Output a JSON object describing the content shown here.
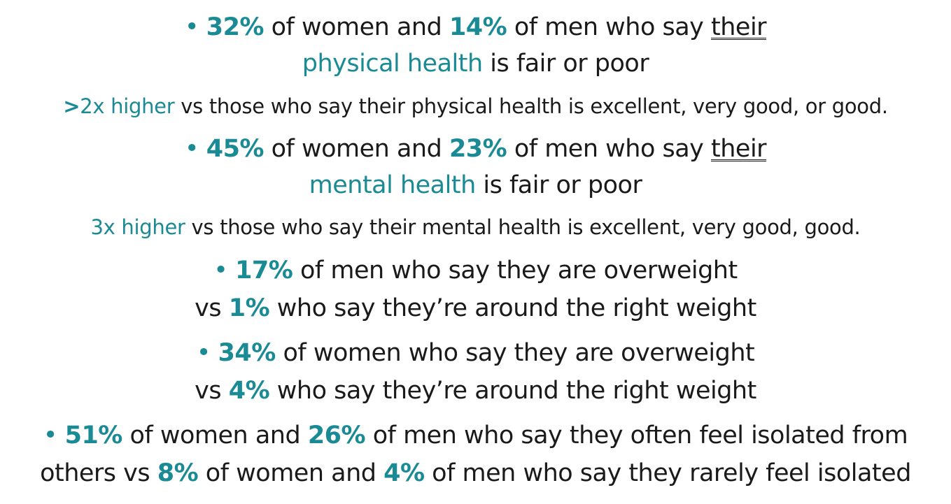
{
  "colors": {
    "accent": "#1a8a94",
    "text": "#1a1a1a"
  },
  "items": [
    {
      "line1": {
        "bullet": "•",
        "pct_a": "32%",
        "t1": " of women and ",
        "pct_b": "14%",
        "t2": " of men who say ",
        "ul": "their"
      },
      "line2": {
        "topic": "physical health",
        "rest": " is fair or poor"
      },
      "sub": {
        "prefix": ">",
        "lead": "2x higher",
        "rest": " vs those who say their physical health is excellent, very good, or good."
      }
    },
    {
      "line1": {
        "bullet": "•",
        "pct_a": "45%",
        "t1": " of women and ",
        "pct_b": "23%",
        "t2": " of men who say ",
        "ul": "their"
      },
      "line2": {
        "topic": "mental health",
        "rest": " is fair or poor"
      },
      "sub": {
        "lead": "3x higher",
        "rest": " vs those who say their mental health is excellent, very good, good."
      }
    },
    {
      "line1": {
        "bullet": "•",
        "pct": "17%",
        "text": " of men who say they are overweight"
      },
      "line2": {
        "vs": "vs ",
        "pct": "1%",
        "text": " who say they’re around the right weight"
      }
    },
    {
      "line1": {
        "bullet": "•",
        "pct": "34%",
        "text": " of women who say they are overweight"
      },
      "line2": {
        "vs": "vs ",
        "pct": "4%",
        "text": " who say they’re around the right weight"
      }
    },
    {
      "line1": {
        "bullet": "•",
        "pct_a": "51%",
        "t1": " of women and ",
        "pct_b": "26%",
        "t2": " of men who say they often feel isolated from"
      },
      "line2": {
        "t0": "others vs ",
        "pct_c": "8%",
        "t1": " of women and ",
        "pct_d": "4%",
        "t2": " of men who say they rarely feel isolated"
      }
    }
  ]
}
